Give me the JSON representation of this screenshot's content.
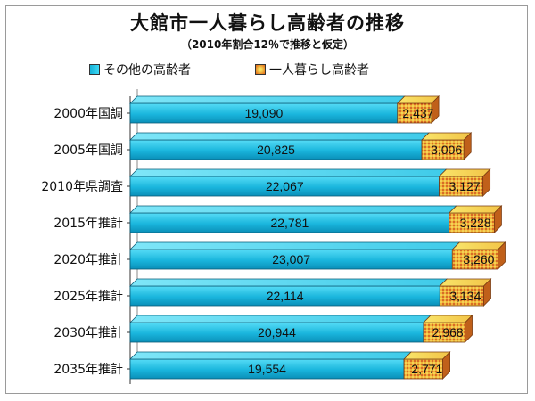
{
  "chart_data": {
    "type": "bar",
    "orientation": "horizontal",
    "stacked": true,
    "title": "大館市一人暮らし高齢者の推移",
    "subtitle": "（2010年割合12％で推移と仮定）",
    "categories": [
      "2000年国調",
      "2005年国調",
      "2010年県調査",
      "2015年推計",
      "2020年推計",
      "2025年推計",
      "2030年推計",
      "2035年推計"
    ],
    "series": [
      {
        "name": "その他の高齢者",
        "values": [
          19090,
          20825,
          22067,
          22781,
          23007,
          22114,
          20944,
          19554
        ],
        "labels": [
          "19,090",
          "20,825",
          "22,067",
          "22,781",
          "23,007",
          "22,114",
          "20,944",
          "19,554"
        ],
        "color": "#1fb8de"
      },
      {
        "name": "一人暮らし高齢者",
        "values": [
          2437,
          3006,
          3127,
          3228,
          3260,
          3134,
          2968,
          2771
        ],
        "labels": [
          "2,437",
          "3,006",
          "3,127",
          "3,228",
          "3,260",
          "3,134",
          "2,968",
          "2,771"
        ],
        "color": "#e8861e"
      }
    ],
    "xlim": [
      0,
      27000
    ],
    "legend_position": "top",
    "grid": false
  }
}
